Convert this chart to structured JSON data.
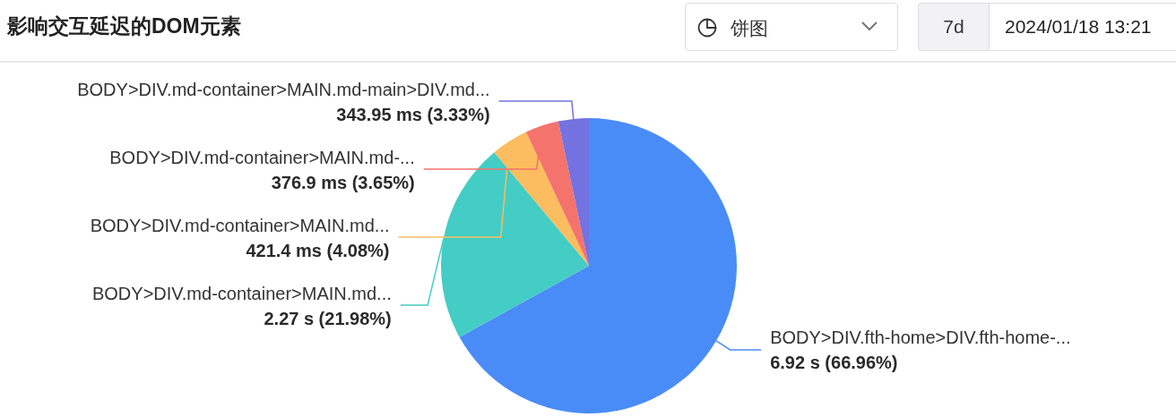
{
  "chart_data": {
    "type": "pie",
    "title": "影响交互延迟的DOM元素",
    "categories": [
      "BODY>DIV.fth-home>DIV.fth-home-...",
      "BODY>DIV.md-container>MAIN.md...",
      "BODY>DIV.md-container>MAIN.md...",
      "BODY>DIV.md-container>MAIN.md-...",
      "BODY>DIV.md-container>MAIN.md-main>DIV.md..."
    ],
    "values": [
      66.96,
      21.98,
      4.08,
      3.65,
      3.33
    ],
    "colors": [
      "#4a8cf7",
      "#44cdc5",
      "#fbbd5f",
      "#f4736c",
      "#7472e0"
    ],
    "value_labels": [
      "6.92 s (66.96%)",
      "2.27 s (21.98%)",
      "421.4 ms (4.08%)",
      "376.9 ms (3.65%)",
      "343.95 ms (3.33%)"
    ],
    "annotations": [
      "饼图",
      "7d",
      "2024/01/18 13:21"
    ]
  }
}
